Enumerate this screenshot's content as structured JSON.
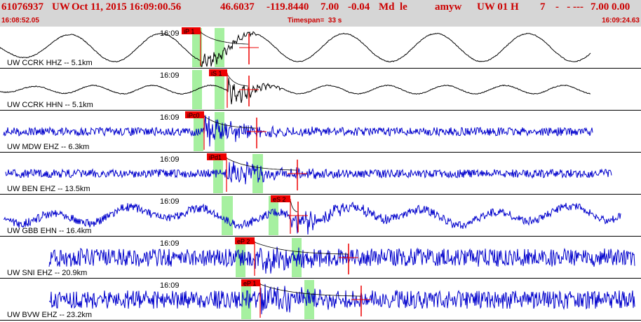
{
  "header": {
    "event_id": "61076937",
    "network": "UW",
    "datetime": "Oct 11, 2015 16:09:00.56",
    "lat": "46.6037",
    "lon": "-119.8440",
    "depth": "7.00",
    "magnitude": "-0.04",
    "mag_type": "Md",
    "event_type": "le",
    "author": "amyw",
    "source": "UW 01 H",
    "quality": "7",
    "dashes": "-   - ---",
    "tail": "7.00 0.00",
    "start_time": "16:08:52.05",
    "timespan": "Timespan=  33 s",
    "end_time": "16:09:24.63"
  },
  "colors": {
    "header_bg": "#d6d6d6",
    "header_text": "#cc0000",
    "broadband_trace": "#000000",
    "short_period_trace": "#0000cc",
    "pick_flag": "#ee0000",
    "window_highlight": "#a6f0a0",
    "coda_curve": "#000000"
  },
  "traces": [
    {
      "label": "UW CCRK HHZ -- 5.1km",
      "time_label": "16:09",
      "pick": "iP 1",
      "type": "broadband"
    },
    {
      "label": "UW CCRK HHN -- 5.1km",
      "time_label": "16:09",
      "pick": "iS 1",
      "type": "broadband"
    },
    {
      "label": "UW MDW EHZ -- 6.3km",
      "time_label": "16:09",
      "pick": "iPc0",
      "type": "short_period"
    },
    {
      "label": "UW BEN EHZ -- 13.5km",
      "time_label": "16:09",
      "pick": "iPd1",
      "type": "short_period"
    },
    {
      "label": "UW GBB EHN -- 16.4km",
      "time_label": "16:09",
      "pick": "eS 2",
      "type": "short_period"
    },
    {
      "label": "UW SNI EHZ -- 20.9km",
      "time_label": "16:09",
      "pick": "eP 2",
      "type": "short_period"
    },
    {
      "label": "UW BVW EHZ -- 23.2km",
      "time_label": "16:09",
      "pick": "eP 1",
      "type": "short_period"
    }
  ]
}
